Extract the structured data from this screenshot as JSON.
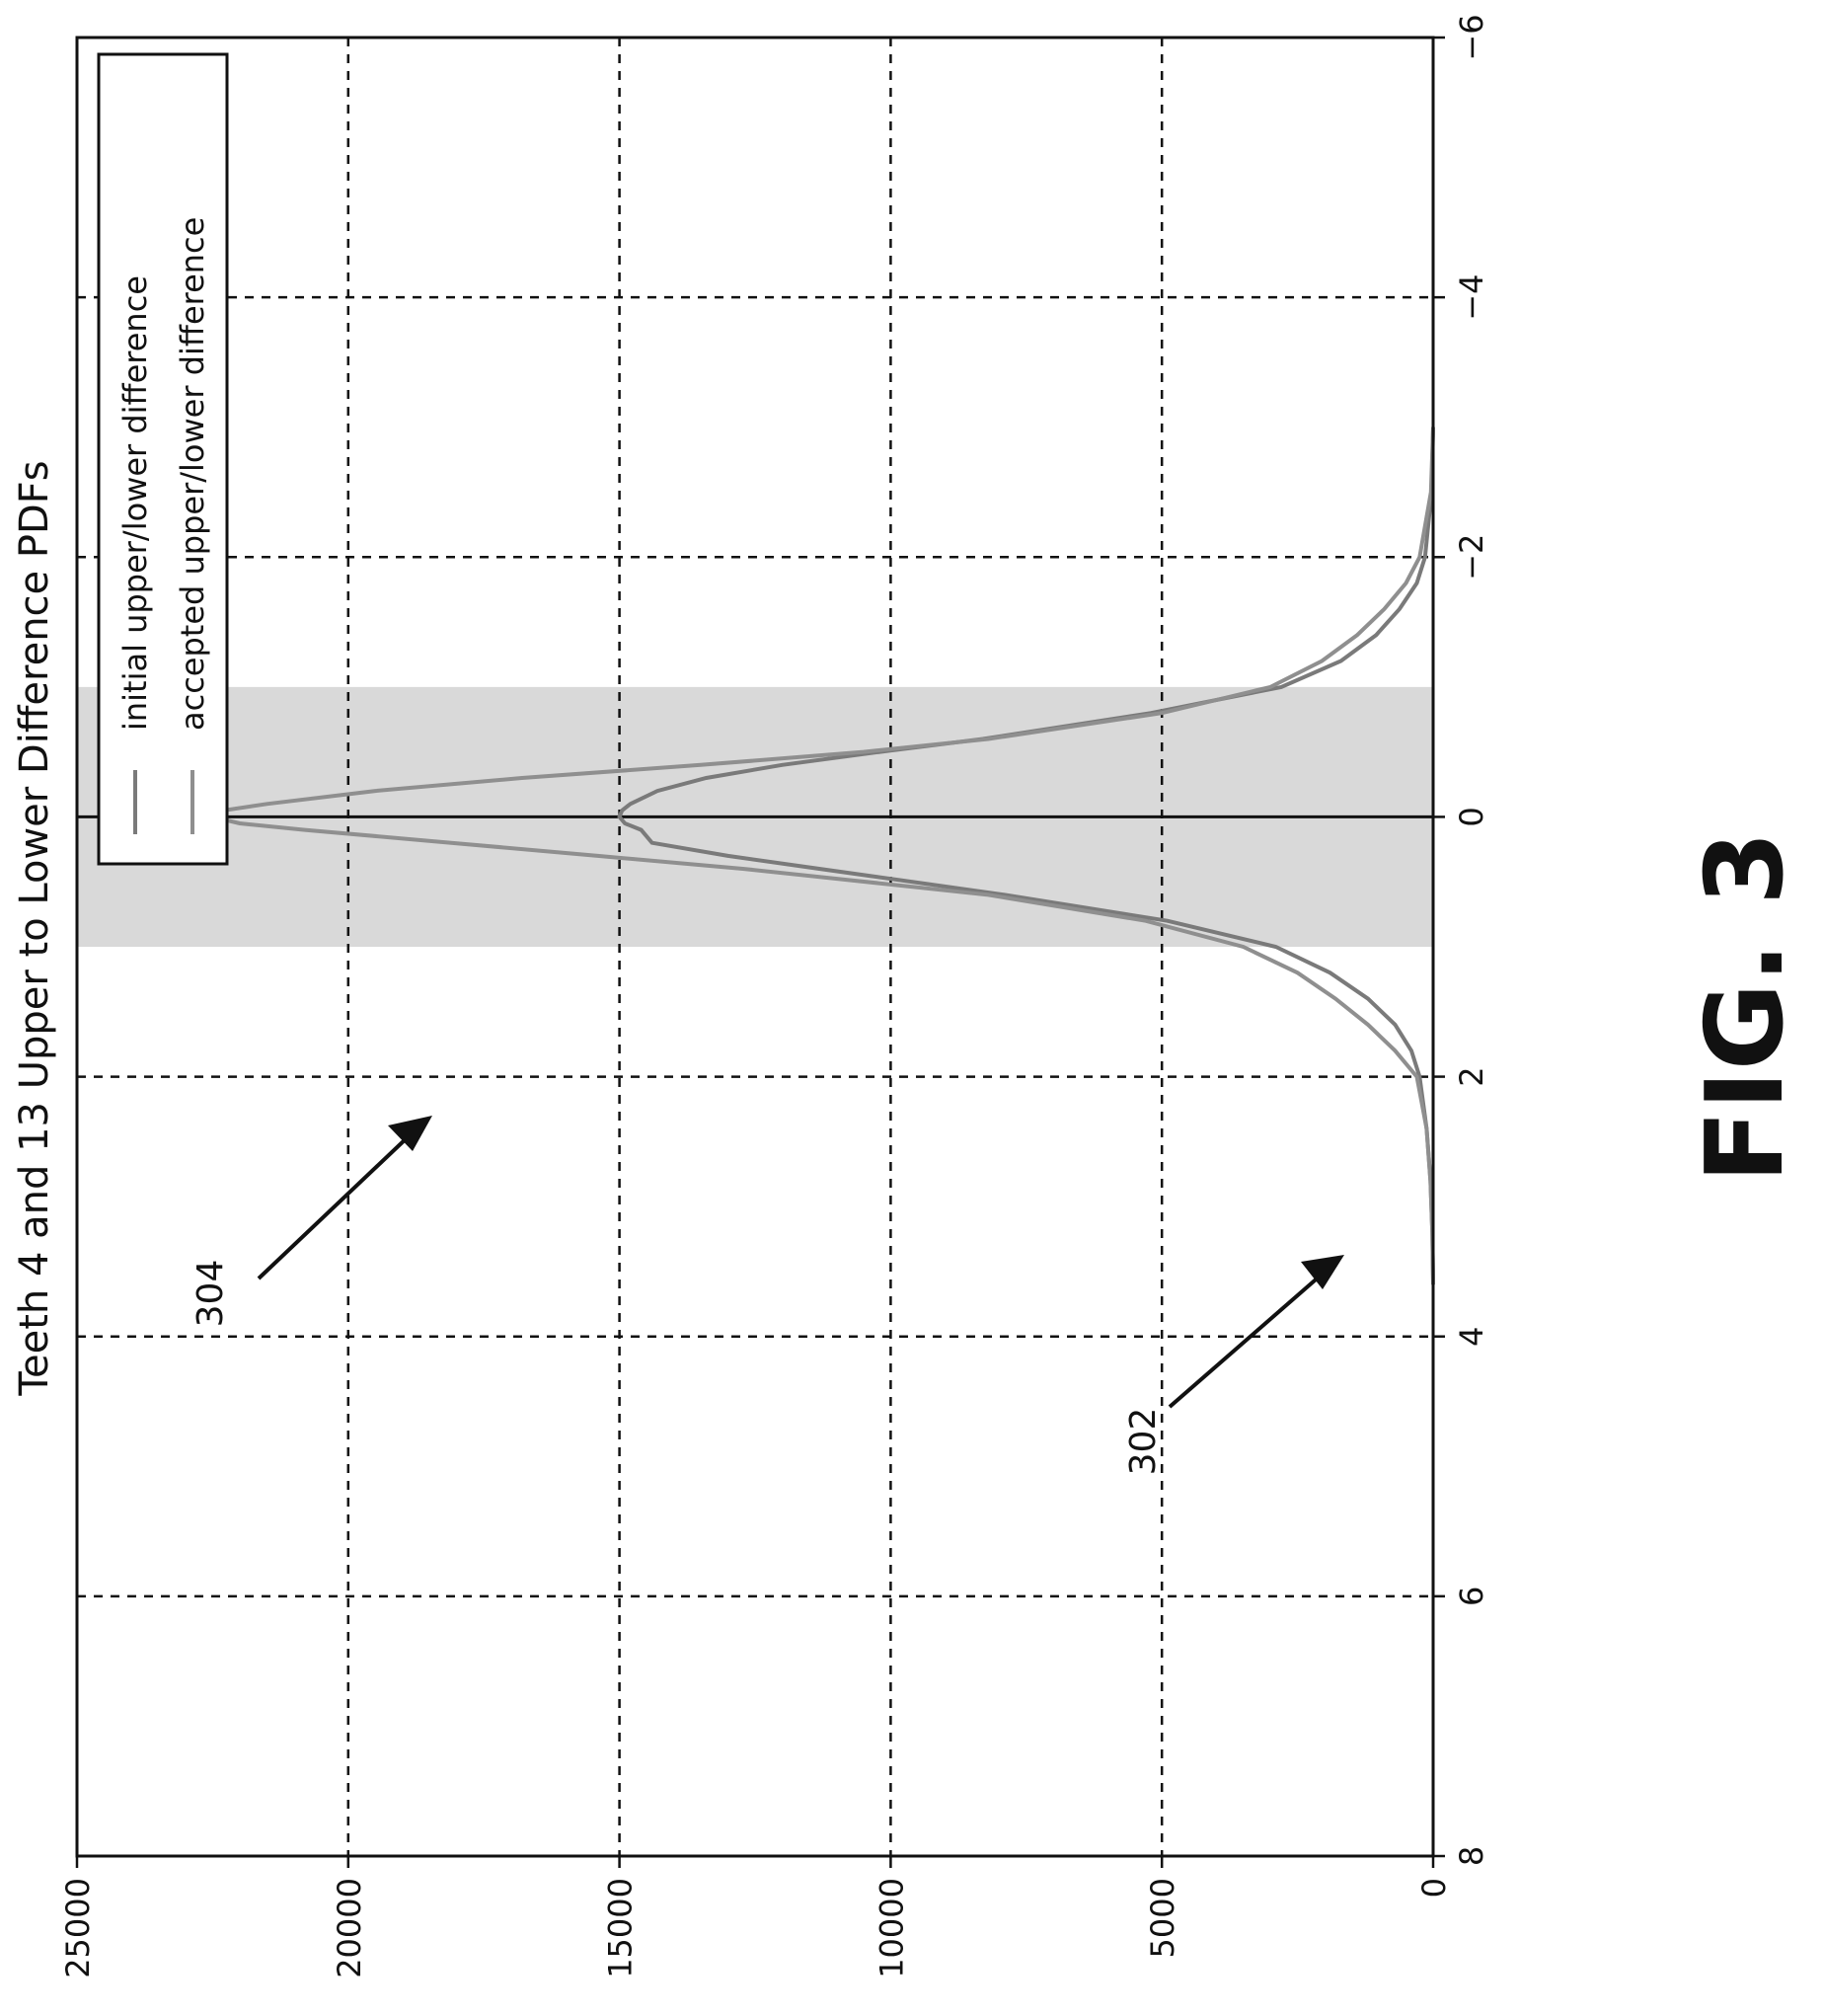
{
  "figure_label": "FIG. 3",
  "callouts": [
    {
      "id": "302",
      "text": "302",
      "target_series": 0,
      "target_x": -1.3
    },
    {
      "id": "304",
      "text": "304",
      "target_series": 1,
      "target_x": -0.3
    }
  ],
  "chart_data": {
    "type": "line",
    "title": "Teeth 4 and 13 Upper to Lower Difference PDFs",
    "xlabel": "",
    "ylabel": "",
    "xlim": [
      -6,
      8
    ],
    "ylim": [
      0,
      25000
    ],
    "xticks": [
      -6,
      -4,
      -2,
      0,
      2,
      4,
      6,
      8
    ],
    "xtick_labels": [
      "−6",
      "−4",
      "−2",
      "0",
      "2",
      "4",
      "6",
      "8"
    ],
    "yticks": [
      0,
      5000,
      10000,
      15000,
      20000,
      25000
    ],
    "ytick_labels": [
      "0",
      "5000",
      "10000",
      "15000",
      "20000",
      "25000"
    ],
    "grid": true,
    "legend_position": "top-left",
    "shaded_band": {
      "x_from": -1,
      "x_to": 1,
      "color": "#cfcfcf"
    },
    "series": [
      {
        "name": "initial upper/lower difference",
        "color": "#7a7a7a",
        "x": [
          -3.0,
          -2.5,
          -2.0,
          -1.8,
          -1.6,
          -1.4,
          -1.2,
          -1.0,
          -0.8,
          -0.6,
          -0.5,
          -0.4,
          -0.3,
          -0.2,
          -0.1,
          -0.05,
          0.0,
          0.05,
          0.1,
          0.2,
          0.3,
          0.4,
          0.6,
          0.8,
          1.0,
          1.2,
          1.4,
          1.6,
          1.8,
          2.0,
          2.4,
          2.8,
          3.2,
          3.6
        ],
        "y": [
          0,
          30,
          150,
          300,
          620,
          1050,
          1700,
          2800,
          5200,
          8300,
          10200,
          12000,
          13400,
          14300,
          14800,
          14950,
          15000,
          14900,
          14600,
          14400,
          13000,
          11300,
          7900,
          4900,
          2900,
          1900,
          1200,
          700,
          400,
          250,
          120,
          50,
          15,
          0
        ]
      },
      {
        "name": "accepted upper/lower difference",
        "color": "#8f8f8f",
        "x": [
          -3.0,
          -2.5,
          -2.0,
          -1.8,
          -1.6,
          -1.4,
          -1.2,
          -1.0,
          -0.8,
          -0.6,
          -0.5,
          -0.4,
          -0.3,
          -0.2,
          -0.1,
          -0.05,
          0.0,
          0.05,
          0.1,
          0.2,
          0.3,
          0.4,
          0.6,
          0.8,
          1.0,
          1.2,
          1.4,
          1.6,
          1.8,
          2.0,
          2.4,
          2.8,
          3.2,
          3.6
        ],
        "y": [
          0,
          40,
          250,
          500,
          900,
          1400,
          2050,
          3000,
          5000,
          8200,
          10500,
          13500,
          16800,
          19500,
          21500,
          22300,
          22500,
          22000,
          20800,
          18100,
          15400,
          12700,
          8200,
          5300,
          3500,
          2500,
          1800,
          1200,
          700,
          300,
          120,
          50,
          15,
          0
        ]
      }
    ]
  }
}
